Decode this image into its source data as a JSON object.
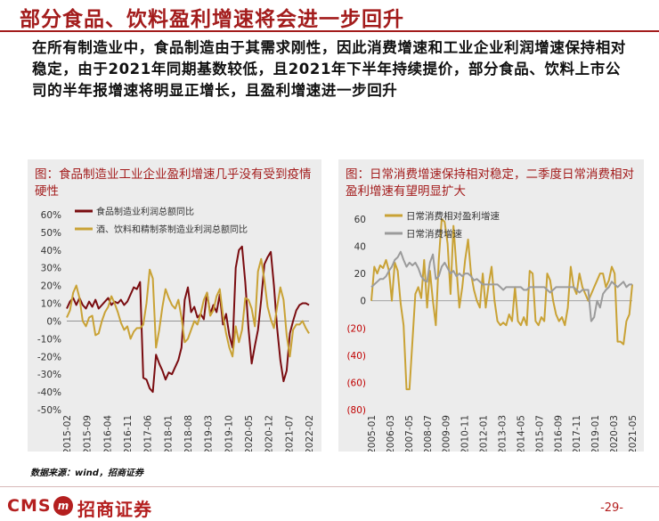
{
  "header": {
    "title": "部分食品、饮料盈利增速将会进一步回升"
  },
  "paragraph": "在所有制造业中，食品制造由于其需求刚性，因此消费增速和工业企业利润增速保持相对稳定，由于2021年同期基数较低，且2021年下半年持续提价，部分食品、饮料上市公司的半年报增速将明显正增长，且盈利增速进一步回升",
  "footer": {
    "source": "数据来源：wind，招商证券",
    "logo_text": "CMS",
    "logo_mark": "m",
    "logo_cn": "招商证券",
    "page": "-29-"
  },
  "colors": {
    "brand": "#a31c1c",
    "dark_red": "#7a0c10",
    "gold": "#c9a235",
    "gray": "#9b9b9b"
  },
  "chart_data": [
    {
      "type": "line",
      "panel_title": "图：食品制造业工业企业盈利增速几乎没有受到疫情硬性",
      "title": "",
      "ylim": [
        -50,
        60
      ],
      "yticks": [
        -50,
        -40,
        -30,
        -20,
        -10,
        0,
        10,
        20,
        30,
        40,
        50,
        60
      ],
      "ytick_labels": [
        "-50%",
        "-40%",
        "-30%",
        "-20%",
        "-10%",
        "0%",
        "10%",
        "20%",
        "30%",
        "40%",
        "50%",
        "60%"
      ],
      "x_tick_labels": [
        "2015-02",
        "2015-09",
        "2016-04",
        "2016-11",
        "2017-06",
        "2018-01",
        "2018-08",
        "2019-03",
        "2019-10",
        "2020-05",
        "2020-12",
        "2021-07",
        "2022-02"
      ],
      "grid": false,
      "legend_position": "top",
      "series": [
        {
          "name": "食品制造业利润总额同比",
          "color": "#7a0c10",
          "values": [
            7,
            11,
            13,
            9,
            13,
            9,
            7,
            11,
            8,
            12,
            7,
            9,
            11,
            13,
            9,
            11,
            10,
            12,
            9,
            11,
            15,
            19,
            18,
            22,
            -32,
            -33,
            -38,
            -40,
            -19,
            -24,
            -28,
            -33,
            -29,
            -30,
            -26,
            -22,
            -15,
            12,
            19,
            5,
            8,
            2,
            4,
            1,
            16,
            4,
            9,
            5,
            15,
            -2,
            4,
            -8,
            -15,
            30,
            40,
            42,
            22,
            -4,
            -24,
            -14,
            -5,
            12,
            32,
            36,
            39,
            20,
            -4,
            -22,
            -34,
            -28,
            -7,
            0,
            6,
            9,
            10,
            10,
            9
          ]
        },
        {
          "name": "酒、饮料和精制茶制造业利润总额同比",
          "color": "#c9a235",
          "values": [
            2,
            6,
            16,
            20,
            13,
            0,
            -3,
            2,
            3,
            -8,
            -7,
            0,
            5,
            8,
            14,
            10,
            5,
            -1,
            -5,
            -3,
            -10,
            -6,
            -4,
            -4,
            -2,
            10,
            29,
            24,
            -15,
            -5,
            8,
            18,
            13,
            9,
            7,
            12,
            2,
            -12,
            -10,
            -5,
            0,
            -2,
            4,
            12,
            16,
            3,
            6,
            14,
            18,
            3,
            -7,
            -15,
            -20,
            -3,
            -12,
            -5,
            13,
            12,
            7,
            -3,
            28,
            35,
            23,
            8,
            1,
            -4,
            8,
            19,
            12,
            -8,
            -20,
            -5,
            -2,
            -2,
            0,
            -4,
            -7
          ]
        }
      ]
    },
    {
      "type": "line",
      "panel_title": "图：日常消费增速保持相对稳定，二季度日常消费相对盈利增速有望明显扩大",
      "title": "",
      "ylim": [
        -80,
        60
      ],
      "yticks": [
        -80,
        -60,
        -40,
        -20,
        0,
        20,
        40,
        60
      ],
      "ytick_labels": [
        "(80)",
        "(60)",
        "(40)",
        "(20)",
        "0",
        "20",
        "40",
        "60"
      ],
      "x_tick_labels": [
        "2005-01",
        "2006-03",
        "2007-05",
        "2008-07",
        "2009-09",
        "2010-11",
        "2012-01",
        "2013-03",
        "2014-05",
        "2015-07",
        "2016-09",
        "2017-11",
        "2019-01",
        "2020-03",
        "2021-05"
      ],
      "grid": false,
      "legend_position": "top",
      "series": [
        {
          "name": "日常消费相对盈利增速",
          "color": "#c9a235",
          "values": [
            0,
            25,
            20,
            26,
            24,
            30,
            22,
            0,
            28,
            22,
            -2,
            -18,
            -65,
            -65,
            -30,
            5,
            10,
            2,
            30,
            -5,
            22,
            0,
            -18,
            30,
            60,
            58,
            42,
            5,
            55,
            25,
            -5,
            10,
            30,
            45,
            20,
            8,
            0,
            -5,
            20,
            -5,
            12,
            25,
            0,
            -15,
            -18,
            -16,
            -18,
            -10,
            -15,
            10,
            -15,
            -18,
            -12,
            -18,
            22,
            20,
            -15,
            -18,
            -12,
            -15,
            20,
            15,
            0,
            -10,
            -15,
            -12,
            -18,
            -5,
            25,
            10,
            5,
            20,
            10,
            5,
            0,
            5,
            10,
            15,
            20,
            20,
            10,
            15,
            25,
            20,
            -30,
            -30,
            -32,
            -15,
            -10,
            12
          ]
        },
        {
          "name": "日常消费增速",
          "color": "#9b9b9b",
          "values": [
            10,
            12,
            14,
            16,
            16,
            18,
            22,
            25,
            30,
            32,
            36,
            30,
            25,
            28,
            26,
            28,
            24,
            18,
            15,
            14,
            28,
            34,
            16,
            18,
            25,
            28,
            24,
            20,
            22,
            18,
            20,
            18,
            20,
            20,
            18,
            15,
            16,
            14,
            12,
            12,
            12,
            12,
            12,
            12,
            10,
            8,
            10,
            10,
            10,
            10,
            10,
            10,
            8,
            8,
            10,
            10,
            10,
            10,
            10,
            10,
            8,
            6,
            8,
            10,
            10,
            10,
            10,
            10,
            10,
            10,
            8,
            6,
            8,
            8,
            8,
            -15,
            -12,
            0,
            -5,
            5,
            8,
            10,
            14,
            12,
            10,
            12,
            14,
            10,
            12,
            12
          ]
        }
      ]
    }
  ]
}
